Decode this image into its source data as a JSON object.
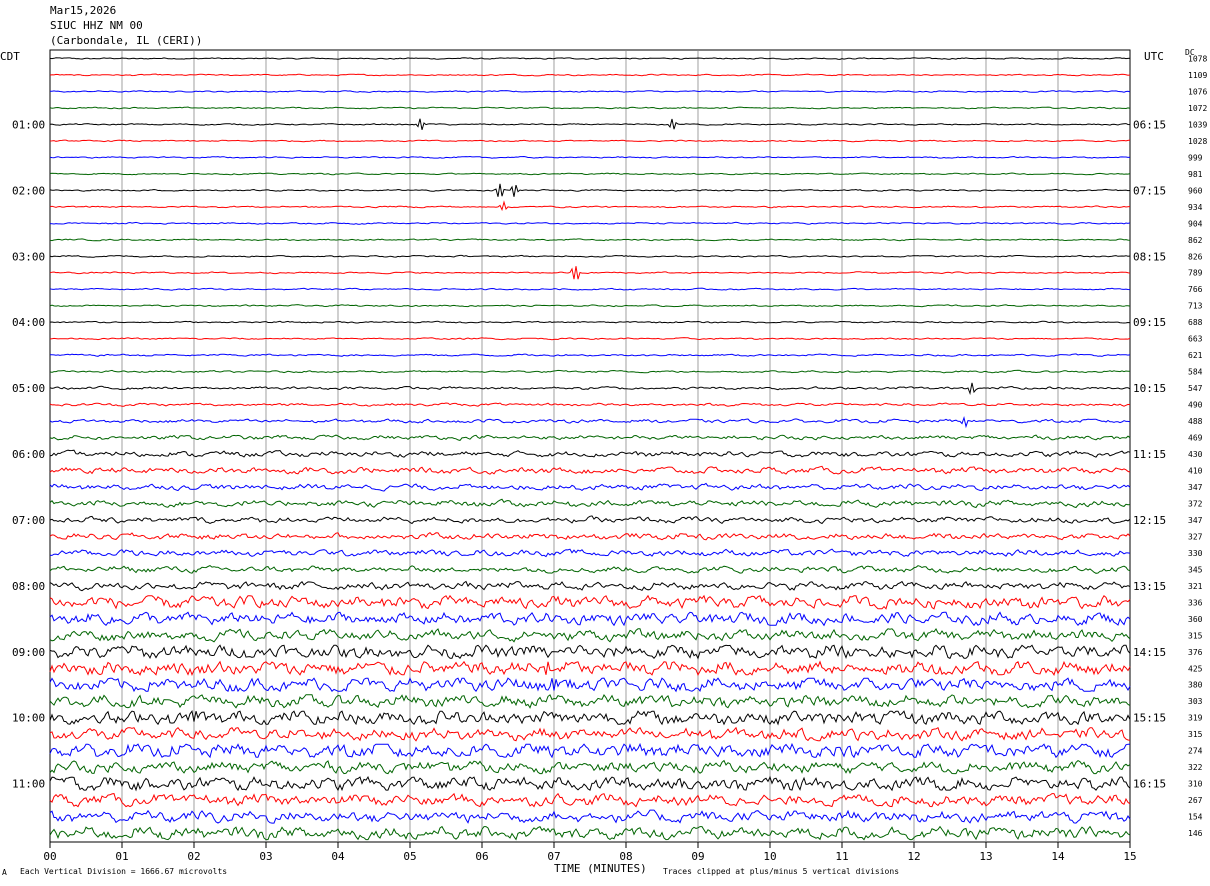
{
  "header": {
    "date": "Mar15,2026",
    "station": "SIUC HHZ NM 00",
    "location": "(Carbondale, IL (CERI))"
  },
  "left_tz": "CDT",
  "right_tz": "UTC",
  "dc_label": "DC",
  "footer": {
    "left_mark": "A",
    "scale_note": "Each Vertical Division = 1666.67 microvolts",
    "clip_note": "Traces clipped at plus/minus 5 vertical divisions"
  },
  "chart_data": {
    "type": "line",
    "subtype": "helicorder",
    "title": "",
    "xlabel": "TIME (MINUTES)",
    "ylabel": "",
    "xlim": [
      0,
      15
    ],
    "x_ticks": [
      "00",
      "01",
      "02",
      "03",
      "04",
      "05",
      "06",
      "07",
      "08",
      "09",
      "10",
      "11",
      "12",
      "13",
      "14",
      "15"
    ],
    "trace_minutes": 15,
    "trace_count": 48,
    "trace_colors": [
      "#000000",
      "#ff0000",
      "#0000ff",
      "#006400"
    ],
    "left_time_labels": [
      "",
      "01:00",
      "02:00",
      "03:00",
      "04:00",
      "05:00",
      "06:00",
      "07:00",
      "08:00",
      "09:00",
      "10:00",
      "11:00"
    ],
    "right_time_labels": [
      "",
      "06:15",
      "07:15",
      "08:15",
      "09:15",
      "10:15",
      "11:15",
      "12:15",
      "13:15",
      "14:15",
      "15:15",
      "16:15"
    ],
    "dc_offsets": [
      1078,
      1109,
      1076,
      1072,
      1039,
      1028,
      999,
      981,
      960,
      934,
      904,
      862,
      826,
      789,
      766,
      713,
      688,
      663,
      621,
      584,
      547,
      490,
      488,
      469,
      430,
      410,
      347,
      372,
      347,
      327,
      330,
      345,
      321,
      336,
      360,
      315,
      376,
      425,
      380,
      303,
      319,
      315,
      274,
      322,
      310,
      267,
      154,
      146
    ],
    "noise_levels": [
      0.18,
      0.18,
      0.18,
      0.18,
      0.18,
      0.18,
      0.18,
      0.18,
      0.2,
      0.2,
      0.2,
      0.2,
      0.2,
      0.2,
      0.2,
      0.2,
      0.2,
      0.2,
      0.25,
      0.25,
      0.35,
      0.35,
      0.45,
      0.55,
      0.7,
      0.8,
      0.75,
      0.8,
      0.75,
      0.8,
      0.8,
      0.8,
      1.0,
      1.6,
      1.6,
      1.4,
      1.8,
      1.9,
      1.8,
      1.6,
      1.9,
      1.6,
      1.9,
      1.5,
      1.8,
      1.5,
      1.5,
      1.6
    ],
    "events": [
      {
        "trace": 4,
        "minute": 5.15,
        "amplitude": 0.8
      },
      {
        "trace": 4,
        "minute": 8.65,
        "amplitude": 0.8
      },
      {
        "trace": 8,
        "minute": 6.25,
        "amplitude": 1.4
      },
      {
        "trace": 8,
        "minute": 6.45,
        "amplitude": 0.9
      },
      {
        "trace": 9,
        "minute": 6.3,
        "amplitude": 0.6
      },
      {
        "trace": 13,
        "minute": 7.3,
        "amplitude": 2.2
      },
      {
        "trace": 20,
        "minute": 12.8,
        "amplitude": 0.7
      },
      {
        "trace": 22,
        "minute": 12.7,
        "amplitude": 0.6
      },
      {
        "trace": 37,
        "minute": 6.9,
        "amplitude": 1.0
      },
      {
        "trace": 38,
        "minute": 7.0,
        "amplitude": 1.2
      },
      {
        "trace": 40,
        "minute": 2.0,
        "amplitude": 1.0
      },
      {
        "trace": 42,
        "minute": 8.2,
        "amplitude": 0.8
      },
      {
        "trace": 42,
        "minute": 10.3,
        "amplitude": 0.7
      }
    ]
  }
}
